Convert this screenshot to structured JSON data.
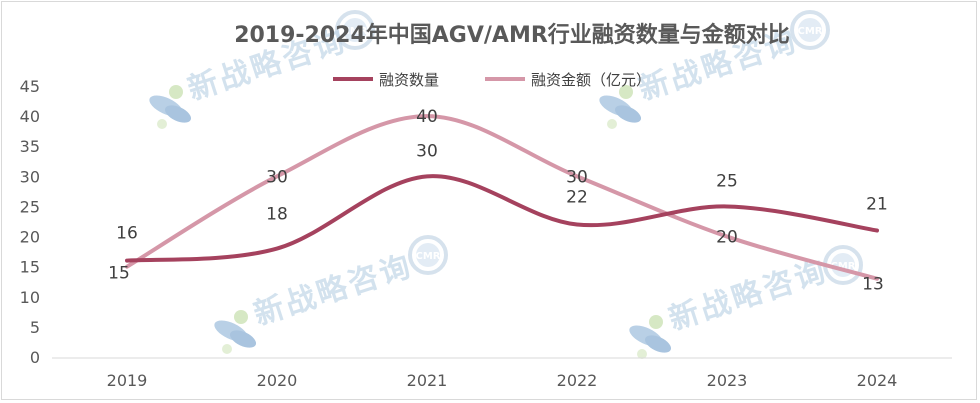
{
  "chart_data": {
    "type": "line",
    "title": "2019-2024年中国AGV/AMR行业融资数量与金额对比",
    "categories": [
      "2019",
      "2020",
      "2021",
      "2022",
      "2023",
      "2024"
    ],
    "ylim": [
      0,
      45
    ],
    "yticks": [
      0,
      5,
      10,
      15,
      20,
      25,
      30,
      35,
      40,
      45
    ],
    "grid": false,
    "legend_position": "top",
    "smooth": true,
    "series": [
      {
        "name": "融资数量",
        "values": [
          16,
          18,
          30,
          22,
          25,
          21
        ],
        "color": "#a5425e"
      },
      {
        "name": "融资金额（亿元）",
        "values": [
          15,
          30,
          40,
          30,
          20,
          13
        ],
        "color": "#d597a8"
      }
    ]
  },
  "watermark": {
    "text": "新战略咨询",
    "badge": "CMR",
    "icon": "cmr-logo-icon"
  }
}
